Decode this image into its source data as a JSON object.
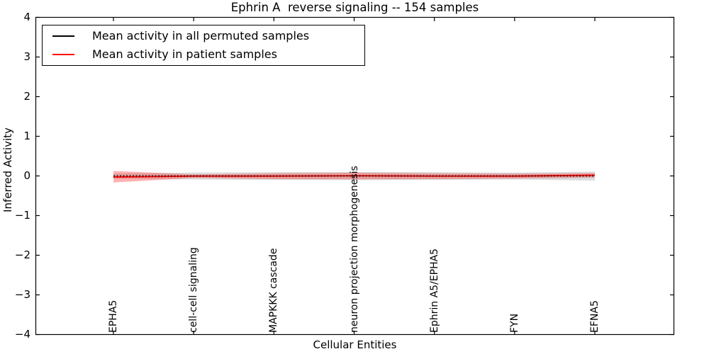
{
  "title": "Ephrin A  reverse signaling -- 154 samples",
  "legend": {
    "items": [
      {
        "label": "Mean activity in all permuted samples",
        "color": "#000000"
      },
      {
        "label": "Mean activity in patient samples",
        "color": "#ff0000"
      }
    ]
  },
  "axes": {
    "y": {
      "label": "Inferred Activity",
      "ticks": [
        "4",
        "3",
        "2",
        "1",
        "0",
        "−1",
        "−2",
        "−3",
        "−4"
      ],
      "min": -4,
      "max": 4
    },
    "x": {
      "label": "Cellular Entities"
    }
  },
  "chart_data": {
    "type": "line",
    "title": "Ephrin A  reverse signaling -- 154 samples",
    "xlabel": "Cellular Entities",
    "ylabel": "Inferred Activity",
    "ylim": [
      -4,
      4
    ],
    "grid": false,
    "legend_position": "upper left",
    "categories": [
      "EPHA5",
      "cell-cell signaling",
      "MAPKKK cascade",
      "neuron projection morphogenesis",
      "Ephrin A5/EPHA5",
      "FYN",
      "EFNA5"
    ],
    "series": [
      {
        "name": "Mean activity in all permuted samples",
        "color": "#000000",
        "style": "dotted",
        "values": [
          0,
          0,
          0,
          0,
          0,
          0,
          0
        ],
        "band_upper": [
          0.06,
          0.085,
          0.095,
          0.1,
          0.095,
          0.085,
          0.11
        ],
        "band_lower": [
          -0.065,
          -0.09,
          -0.1,
          -0.105,
          -0.1,
          -0.09,
          -0.115
        ],
        "band_color": "rgba(125,125,125,0.28)"
      },
      {
        "name": "Mean activity in patient samples",
        "color": "#ff0000",
        "style": "solid",
        "values": [
          -0.03,
          -0.005,
          -0.005,
          0.005,
          -0.005,
          -0.005,
          0.02
        ],
        "band_upper": [
          0.125,
          0.04,
          0.065,
          0.08,
          0.065,
          0.055,
          0.07
        ],
        "band_lower": [
          -0.165,
          -0.05,
          -0.08,
          -0.085,
          -0.08,
          -0.065,
          -0.04
        ],
        "band_color": "rgba(255,0,0,0.3)"
      }
    ]
  }
}
